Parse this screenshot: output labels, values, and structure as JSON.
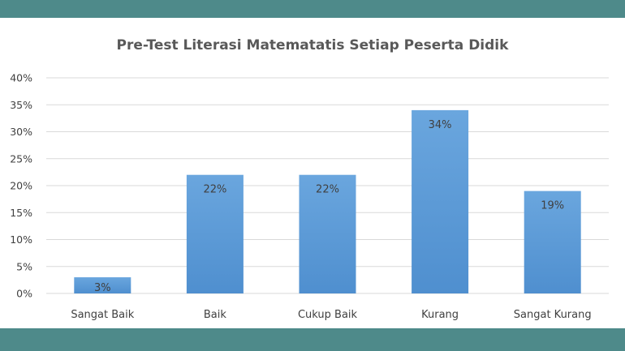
{
  "chart_data": {
    "type": "bar",
    "title": "Pre-Test Literasi Matematatis Setiap Peserta Didik",
    "xlabel": "",
    "ylabel": "",
    "categories": [
      "Sangat Baik",
      "Baik",
      "Cukup Baik",
      "Kurang",
      "Sangat Kurang"
    ],
    "values": [
      3,
      22,
      22,
      34,
      19
    ],
    "data_labels": [
      "3%",
      "22%",
      "22%",
      "34%",
      "19%"
    ],
    "ylim": [
      0,
      40
    ],
    "yticks": [
      "0%",
      "5%",
      "10%",
      "15%",
      "20%",
      "25%",
      "30%",
      "35%",
      "40%"
    ],
    "grid": true,
    "legend": "none",
    "bar_color": "#5b9bd5",
    "background_frame_color": "#4e8a8a"
  }
}
